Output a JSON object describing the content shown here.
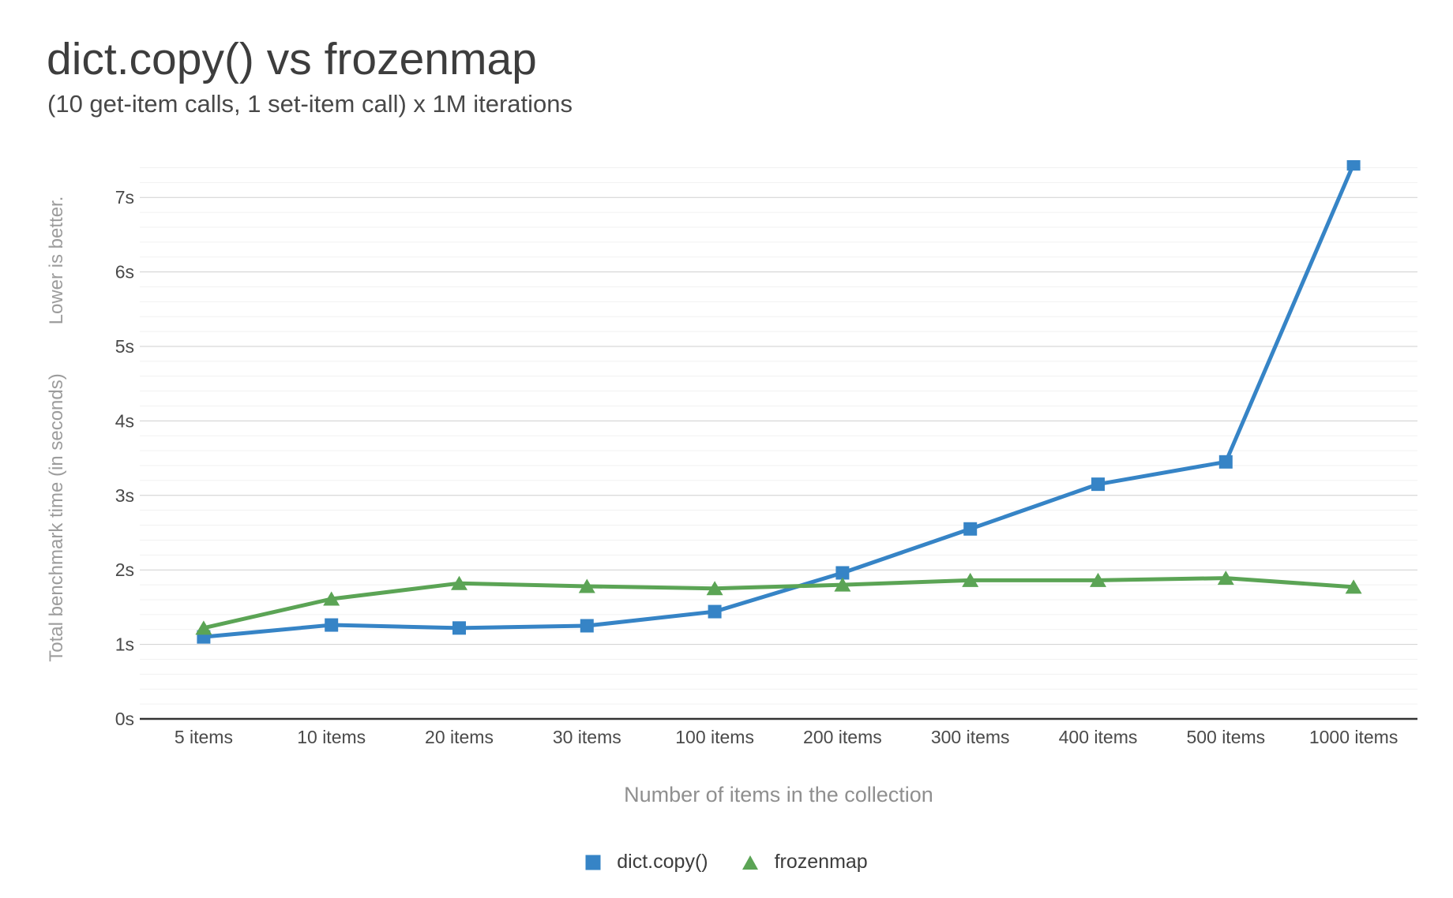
{
  "chart_data": {
    "type": "line",
    "title": "dict.copy() vs frozenmap",
    "subtitle": "(10 get-item calls, 1 set-item call) x 1M iterations",
    "xlabel": "Number of items in the collection",
    "ylabel": "Total benchmark time (in seconds)",
    "ylabel_note": "Lower is better.",
    "categories": [
      "5 items",
      "10 items",
      "20 items",
      "30 items",
      "100 items",
      "200 items",
      "300 items",
      "400 items",
      "500 items",
      "1000 items"
    ],
    "series": [
      {
        "name": "dict.copy()",
        "marker": "square",
        "color": "#3684c6",
        "values": [
          1.1,
          1.26,
          1.22,
          1.25,
          1.44,
          1.96,
          2.55,
          3.15,
          3.45,
          7.45
        ]
      },
      {
        "name": "frozenmap",
        "marker": "triangle",
        "color": "#5ba455",
        "values": [
          1.22,
          1.61,
          1.82,
          1.78,
          1.75,
          1.8,
          1.86,
          1.86,
          1.89,
          1.77
        ]
      }
    ],
    "y_tick_labels": [
      "0s",
      "1s",
      "2s",
      "3s",
      "4s",
      "5s",
      "6s",
      "7s"
    ],
    "ylim": [
      0,
      7.5
    ],
    "y_major_step": 1,
    "y_minor_step": 0.2,
    "grid": true,
    "legend_position": "bottom",
    "colors": {
      "axis_line": "#333333",
      "major_grid": "#cfcfcf",
      "minor_grid": "#f1f1f1",
      "tick_label": "#4a4a4a"
    }
  }
}
